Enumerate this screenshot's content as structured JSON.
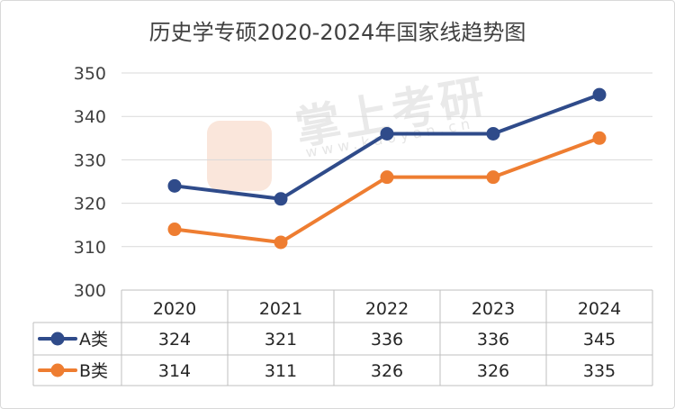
{
  "chart_data": {
    "type": "line",
    "title": "历史学专硕2020-2024年国家线趋势图",
    "categories": [
      "2020",
      "2021",
      "2022",
      "2023",
      "2024"
    ],
    "ylim": [
      300,
      350
    ],
    "yticks": [
      300,
      310,
      320,
      330,
      340,
      350
    ],
    "grid": true,
    "legend": "data-table",
    "series": [
      {
        "name": "A类",
        "values": [
          324,
          321,
          336,
          336,
          345
        ],
        "color": "#2f4b8a"
      },
      {
        "name": "B类",
        "values": [
          314,
          311,
          326,
          326,
          335
        ],
        "color": "#ee7d31"
      }
    ]
  },
  "watermark": {
    "brand": "掌上考研",
    "url": "www.kaoyan.cn"
  }
}
